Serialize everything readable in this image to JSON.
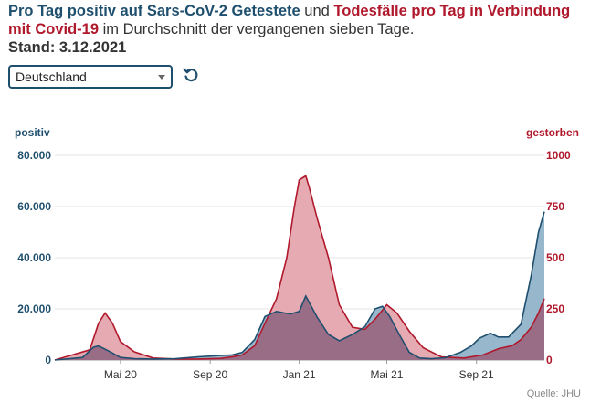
{
  "headline": {
    "part1": "Pro Tag positiv auf Sars-CoV-2 Getestete",
    "part2": " und ",
    "part3": "Todesfälle pro Tag in Verbindung mit Covid-19",
    "part4": " im Durchschnitt der vergangenen sieben Tage.",
    "stand": "Stand: 3.12.2021"
  },
  "selector": {
    "value": "Deutschland"
  },
  "reset_icon": "reset-icon",
  "source": "Quelle: JHU",
  "colors": {
    "positive": "#1f4f6e",
    "positive_fill": "#90b3c9",
    "deaths": "#b0182c",
    "deaths_fill": "#e5a7ae",
    "overlap_fill": "#9a6d86"
  },
  "chart_data": {
    "type": "area",
    "left_axis_label": "positiv",
    "right_axis_label": "gestorben",
    "left_ticks": [
      "80.000",
      "60.000",
      "40.000",
      "20.000",
      "0"
    ],
    "right_ticks": [
      "1000",
      "750",
      "500",
      "250",
      "0"
    ],
    "x_ticks": [
      "Mai 20",
      "Sep 20",
      "Jan 21",
      "Mai 21",
      "Sep 21"
    ],
    "ylim_left": [
      0,
      80000
    ],
    "ylim_right": [
      0,
      1000
    ],
    "xlim": [
      "2020-02-01",
      "2021-12-03"
    ],
    "grid": true,
    "series": [
      {
        "name": "positiv",
        "axis": "left",
        "x": [
          "2020-02-01",
          "2020-03-10",
          "2020-03-25",
          "2020-04-01",
          "2020-04-15",
          "2020-05-01",
          "2020-05-20",
          "2020-06-15",
          "2020-07-15",
          "2020-08-15",
          "2020-09-15",
          "2020-10-01",
          "2020-10-15",
          "2020-11-01",
          "2020-11-15",
          "2020-12-01",
          "2020-12-20",
          "2021-01-01",
          "2021-01-10",
          "2021-01-25",
          "2021-02-10",
          "2021-02-25",
          "2021-03-15",
          "2021-04-01",
          "2021-04-15",
          "2021-04-25",
          "2021-05-05",
          "2021-05-20",
          "2021-06-01",
          "2021-06-15",
          "2021-07-01",
          "2021-07-20",
          "2021-08-10",
          "2021-08-25",
          "2021-09-05",
          "2021-09-20",
          "2021-10-01",
          "2021-10-15",
          "2021-11-01",
          "2021-11-15",
          "2021-11-25",
          "2021-12-03"
        ],
        "values": [
          0,
          1000,
          5000,
          5500,
          3500,
          1000,
          500,
          400,
          500,
          1200,
          1800,
          2000,
          3000,
          8000,
          17000,
          19000,
          18000,
          19000,
          25000,
          17000,
          10000,
          7500,
          10000,
          13000,
          20000,
          21000,
          17000,
          9000,
          3000,
          800,
          500,
          900,
          3000,
          5500,
          8500,
          10500,
          9000,
          9000,
          14000,
          33000,
          50000,
          58000
        ]
      },
      {
        "name": "gestorben",
        "axis": "right",
        "x": [
          "2020-02-01",
          "2020-03-20",
          "2020-04-01",
          "2020-04-10",
          "2020-04-20",
          "2020-05-01",
          "2020-05-20",
          "2020-06-15",
          "2020-07-15",
          "2020-08-15",
          "2020-09-15",
          "2020-10-01",
          "2020-10-15",
          "2020-11-01",
          "2020-11-15",
          "2020-12-01",
          "2020-12-15",
          "2020-12-25",
          "2021-01-01",
          "2021-01-10",
          "2021-01-15",
          "2021-01-25",
          "2021-02-10",
          "2021-02-25",
          "2021-03-15",
          "2021-04-01",
          "2021-04-15",
          "2021-05-01",
          "2021-05-15",
          "2021-06-01",
          "2021-06-20",
          "2021-07-15",
          "2021-08-15",
          "2021-09-10",
          "2021-10-01",
          "2021-10-20",
          "2021-11-01",
          "2021-11-15",
          "2021-11-25",
          "2021-12-03"
        ],
        "values": [
          0,
          50,
          180,
          230,
          180,
          90,
          40,
          10,
          5,
          5,
          8,
          15,
          25,
          70,
          180,
          300,
          500,
          740,
          880,
          900,
          840,
          700,
          500,
          270,
          160,
          150,
          200,
          270,
          230,
          140,
          60,
          15,
          10,
          25,
          55,
          70,
          100,
          160,
          230,
          300
        ]
      }
    ]
  }
}
